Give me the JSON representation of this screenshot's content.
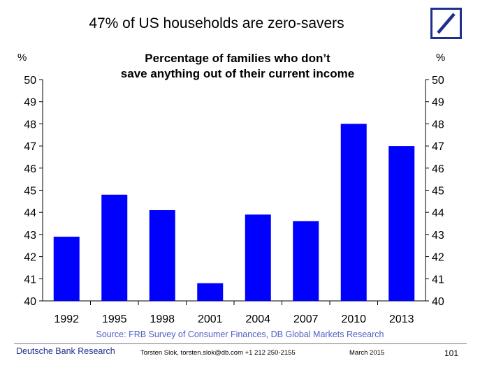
{
  "slide": {
    "title": "47% of US households are zero-savers",
    "source": "Source: FRB Survey of Consumer Finances, DB Global Markets Research"
  },
  "footer": {
    "brand": "Deutsche Bank Research",
    "contact": "Torsten Slok, torsten.slok@db.com  +1 212 250-2155",
    "date": "March 2015",
    "page": "101"
  },
  "colors": {
    "bar": "#0000ff",
    "brand": "#1f2f8f",
    "source": "#4f5fc0"
  },
  "chart_data": {
    "type": "bar",
    "title": "Percentage of families who don’t save anything out of their current income",
    "title_lines": [
      "Percentage of families who don’t",
      "save anything out of their current income"
    ],
    "unit_left": "%",
    "unit_right": "%",
    "categories": [
      "1992",
      "1995",
      "1998",
      "2001",
      "2004",
      "2007",
      "2010",
      "2013"
    ],
    "values": [
      42.9,
      44.8,
      44.1,
      40.8,
      43.9,
      43.6,
      48.0,
      47.0
    ],
    "ylim": [
      40,
      50
    ],
    "yticks": [
      40,
      41,
      42,
      43,
      44,
      45,
      46,
      47,
      48,
      49,
      50
    ],
    "grid": false,
    "legend": "none"
  }
}
